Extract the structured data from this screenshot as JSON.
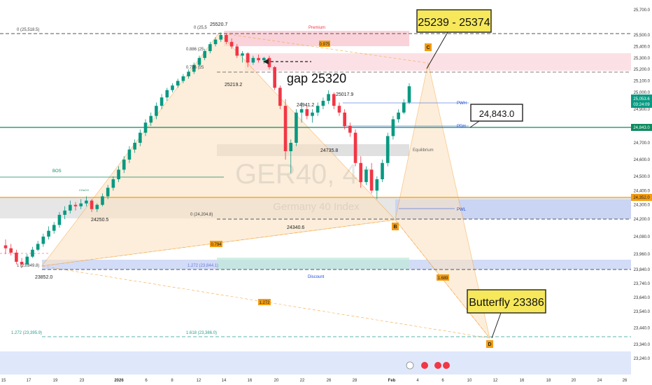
{
  "chart_data": {
    "type": "candlestick",
    "watermark": {
      "symbol": "GER40, 4h",
      "name": "Germany 40 Index"
    },
    "price_axis": {
      "ticks": [
        25700,
        25500,
        25400,
        25300,
        25200,
        25100,
        25000,
        24900,
        24800,
        24700,
        24600,
        24500,
        24400,
        24300,
        24200,
        24080,
        23960,
        23840,
        23740,
        23640,
        23540,
        23440,
        23340,
        23240
      ],
      "labels": [
        "25,700.0",
        "25,500.0",
        "25,400.0",
        "25,300.0",
        "25,200.0",
        "25,100.0",
        "25,000.0",
        "24,900.0",
        "24,800.0",
        "24,700.0",
        "24,600.0",
        "24,500.0",
        "24,400.0",
        "24,300.0",
        "24,200.0",
        "24,080.0",
        "23,960.0",
        "23,840.0",
        "23,740.0",
        "23,640.0",
        "23,540.0",
        "23,440.0",
        "23,340.0",
        "23,240.0"
      ],
      "current_price": "25,053.6",
      "countdown": "03:24:09",
      "marker_24843": "24,843.0",
      "marker_24352": "24,352.0"
    },
    "time_axis": {
      "labels": [
        "15",
        "17",
        "19",
        "23",
        "2026",
        "6",
        "8",
        "12",
        "14",
        "16",
        "20",
        "22",
        "26",
        "28",
        "Feb",
        "4",
        "6",
        "10",
        "12",
        "16",
        "18",
        "20",
        "24",
        "26"
      ]
    },
    "candles_ohlc": [
      [
        24020,
        24060,
        23960,
        24000
      ],
      [
        24000,
        24030,
        23950,
        23970
      ],
      [
        23970,
        23990,
        23880,
        23900
      ],
      [
        23900,
        23930,
        23852,
        23880
      ],
      [
        23880,
        23960,
        23870,
        23940
      ],
      [
        23940,
        24010,
        23930,
        23990
      ],
      [
        23990,
        24050,
        23980,
        24030
      ],
      [
        24030,
        24100,
        24010,
        24080
      ],
      [
        24080,
        24150,
        24060,
        24120
      ],
      [
        24120,
        24180,
        24100,
        24160
      ],
      [
        24160,
        24250,
        24140,
        24230
      ],
      [
        24230,
        24290,
        24200,
        24260
      ],
      [
        24260,
        24330,
        24240,
        24300
      ],
      [
        24300,
        24320,
        24260,
        24290
      ],
      [
        24290,
        24340,
        24270,
        24310
      ],
      [
        24310,
        24360,
        24290,
        24330
      ],
      [
        24330,
        24340,
        24250,
        24270
      ],
      [
        24270,
        24310,
        24250,
        24300
      ],
      [
        24300,
        24380,
        24290,
        24360
      ],
      [
        24360,
        24440,
        24340,
        24420
      ],
      [
        24420,
        24500,
        24400,
        24480
      ],
      [
        24480,
        24560,
        24460,
        24540
      ],
      [
        24540,
        24620,
        24520,
        24600
      ],
      [
        24600,
        24680,
        24580,
        24660
      ],
      [
        24660,
        24720,
        24640,
        24700
      ],
      [
        24700,
        24780,
        24680,
        24760
      ],
      [
        24760,
        24840,
        24740,
        24820
      ],
      [
        24820,
        24880,
        24800,
        24860
      ],
      [
        24860,
        24940,
        24840,
        24920
      ],
      [
        24920,
        24990,
        24900,
        24970
      ],
      [
        24970,
        25040,
        24950,
        25020
      ],
      [
        25020,
        25080,
        25000,
        25060
      ],
      [
        25060,
        25120,
        25040,
        25100
      ],
      [
        25100,
        25160,
        25080,
        25140
      ],
      [
        25140,
        25200,
        25120,
        25180
      ],
      [
        25180,
        25260,
        25160,
        25240
      ],
      [
        25240,
        25320,
        25220,
        25300
      ],
      [
        25300,
        25380,
        25280,
        25360
      ],
      [
        25360,
        25440,
        25340,
        25420
      ],
      [
        25420,
        25480,
        25400,
        25460
      ],
      [
        25460,
        25520.7,
        25440,
        25500
      ],
      [
        25500,
        25510,
        25420,
        25440
      ],
      [
        25440,
        25470,
        25380,
        25400
      ],
      [
        25400,
        25420,
        25300,
        25320
      ],
      [
        25320,
        25360,
        25260,
        25340
      ],
      [
        25340,
        25350,
        25219.2,
        25260
      ],
      [
        25260,
        25320,
        25240,
        25300
      ],
      [
        25300,
        25330,
        25260,
        25280
      ],
      [
        25280,
        25310,
        25250,
        25300
      ],
      [
        25300,
        25320,
        25200,
        25220
      ],
      [
        25220,
        25230,
        25020,
        25040
      ],
      [
        25040,
        25060,
        24900,
        24920
      ],
      [
        24920,
        24960,
        24600,
        24650
      ],
      [
        24650,
        24720,
        24520,
        24700
      ],
      [
        24700,
        24900,
        24680,
        24880
      ],
      [
        24880,
        24941.2,
        24820,
        24900
      ],
      [
        24900,
        24920,
        24840,
        24860
      ],
      [
        24860,
        24900,
        24820,
        24880
      ],
      [
        24880,
        24940,
        24860,
        24920
      ],
      [
        24920,
        24970,
        24900,
        24950
      ],
      [
        24950,
        25017.9,
        24930,
        24990
      ],
      [
        24990,
        25000,
        24900,
        24920
      ],
      [
        24920,
        24940,
        24860,
        24880
      ],
      [
        24880,
        24900,
        24780,
        24800
      ],
      [
        24800,
        24820,
        24735.8,
        24760
      ],
      [
        24760,
        24780,
        24560,
        24580
      ],
      [
        24580,
        24620,
        24420,
        24460
      ],
      [
        24460,
        24560,
        24440,
        24540
      ],
      [
        24540,
        24580,
        24380,
        24400
      ],
      [
        24400,
        24500,
        24340.6,
        24480
      ],
      [
        24480,
        24600,
        24460,
        24580
      ],
      [
        24580,
        24760,
        24560,
        24740
      ],
      [
        24740,
        24860,
        24720,
        24840
      ],
      [
        24840,
        24900,
        24820,
        24880
      ],
      [
        24880,
        24960,
        24870,
        24940
      ],
      [
        24940,
        25080,
        24930,
        25053.6
      ]
    ],
    "levels": [
      {
        "label": "0 (25,518.5)",
        "value": 25518.5
      },
      {
        "label": "0 (24,204.8)",
        "value": 24204.8
      },
      {
        "label": "1 (23,849.8)",
        "value": 23849.8
      },
      {
        "label": "1.272 (23,844.1)",
        "value": 23844.1
      },
      {
        "label": "1.272 (23,395.9)",
        "value": 23395.9
      },
      {
        "label": "1.618 (23,386.0)",
        "value": 23386.0
      },
      {
        "label": "PWH",
        "value": 25053.6
      },
      {
        "label": "PDH",
        "value": 24843.0
      }
    ],
    "price_labels": [
      "25520.7",
      "25219.2",
      "24941.2",
      "25017.9",
      "24735.8",
      "24340.6",
      "24250.5",
      "23852.0"
    ],
    "small_labels": [
      "0.886 (25",
      "0.786 (25",
      "0 (25,5",
      "Premium",
      "Equilibrium",
      "Discount",
      "BOS",
      "CHoCH",
      "PWL"
    ],
    "ratios": [
      "0.975",
      "0.794",
      "1.272",
      "1.689"
    ],
    "pattern_points": [
      "B",
      "C",
      "D"
    ],
    "callouts": {
      "target_zone": "25239 - 25374",
      "gap": "gap 25320",
      "pdh": "24,843.0",
      "butterfly": "Butterfly 23386"
    },
    "colors": {
      "bull": "#089981",
      "bear": "#f23645",
      "pattern_fill": "#fbe3c4",
      "pattern_line": "#f7a440",
      "premium_zone": "#f8c8cf",
      "discount_zone": "#c7d3f5",
      "level_green": "#0f8a5f",
      "level_orange": "#f39c12",
      "callout_fill": "#f6e85a"
    }
  }
}
